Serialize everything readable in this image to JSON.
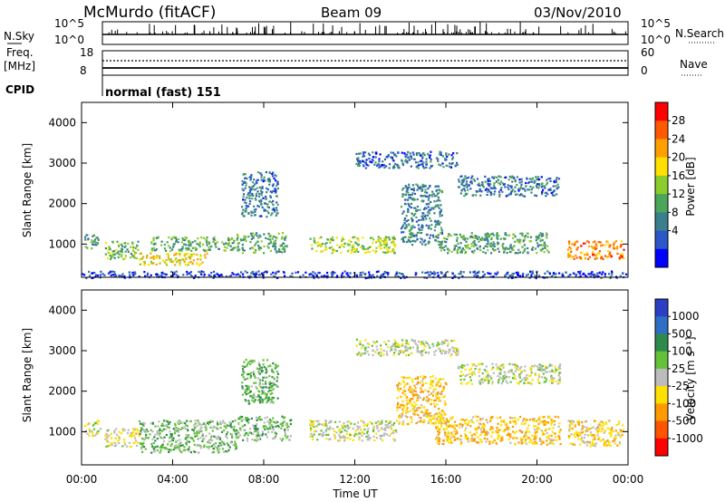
{
  "header": {
    "station": "McMurdo (fitACF)",
    "beam": "Beam 09",
    "date": "03/Nov/2010"
  },
  "noise_panel": {
    "left_label": "N.Sky",
    "left_ticks": [
      "10^5",
      "10^0"
    ],
    "right_label": "N.Search",
    "right_ticks": [
      "10^5",
      "10^0"
    ]
  },
  "freq_panel": {
    "left_label_1": "Freq.",
    "left_label_2": "[MHz]",
    "left_ticks": [
      "18",
      "8"
    ],
    "right_label": "Nave",
    "right_ticks": [
      "60",
      "0"
    ]
  },
  "cpid": {
    "label": "CPID",
    "value": "normal (fast) 151"
  },
  "power_panel": {
    "ylabel": "Slant Range [km]",
    "y_ticks": [
      "4000",
      "3000",
      "2000",
      "1000"
    ],
    "colorbar_label": "Power [dB]",
    "colorbar_ticks": [
      "28",
      "24",
      "20",
      "16",
      "12",
      "8",
      "4"
    ]
  },
  "velocity_panel": {
    "ylabel": "Slant Range [km]",
    "y_ticks": [
      "4000",
      "3000",
      "2000",
      "1000"
    ],
    "colorbar_label": "Velocity [m s⁻¹]",
    "colorbar_ticks": [
      "1000",
      "500",
      "100",
      "25",
      "-25",
      "-100",
      "-500",
      "-1000"
    ]
  },
  "x_axis": {
    "label": "Time UT",
    "ticks": [
      "00:00",
      "04:00",
      "08:00",
      "12:00",
      "16:00",
      "20:00",
      "00:00"
    ]
  },
  "colors": {
    "power_scale": [
      "#0000ff",
      "#2b57c8",
      "#3a7f8c",
      "#4ca65a",
      "#8ccc2c",
      "#ffe000",
      "#ffa000",
      "#ff5a00",
      "#ff0000"
    ],
    "velocity_scale": [
      "#2b3fc4",
      "#2e6fc4",
      "#2f8a4d",
      "#63c23a",
      "#bcbcbc",
      "#ffe000",
      "#ff9a00",
      "#ff5500",
      "#ff0000"
    ]
  },
  "chart_data": [
    {
      "type": "heatmap",
      "title": "Power",
      "xlabel": "Time UT",
      "ylabel": "Slant Range [km]",
      "xlim": [
        0,
        24
      ],
      "ylim": [
        180,
        4500
      ],
      "colorbar": {
        "label": "Power [dB]",
        "range": [
          0,
          32
        ],
        "ticks": [
          4,
          8,
          12,
          16,
          20,
          24,
          28
        ]
      },
      "regions": [
        {
          "t": [
            0.1,
            0.8
          ],
          "range": [
            900,
            1250
          ],
          "value": 11
        },
        {
          "t": [
            1.0,
            2.5
          ],
          "range": [
            650,
            1100
          ],
          "value": 14
        },
        {
          "t": [
            2.5,
            5.5
          ],
          "range": [
            500,
            800
          ],
          "value": 20
        },
        {
          "t": [
            3.0,
            6.8
          ],
          "range": [
            850,
            1200
          ],
          "value": 13
        },
        {
          "t": [
            6.8,
            9.0
          ],
          "range": [
            800,
            1300
          ],
          "value": 12
        },
        {
          "t": [
            7.0,
            8.6
          ],
          "range": [
            1700,
            2800
          ],
          "value": 8
        },
        {
          "t": [
            10.0,
            13.8
          ],
          "range": [
            800,
            1200
          ],
          "value": 16
        },
        {
          "t": [
            14.0,
            15.8
          ],
          "range": [
            1000,
            2500
          ],
          "value": 9
        },
        {
          "t": [
            12.0,
            16.5
          ],
          "range": [
            2900,
            3300
          ],
          "value": 7
        },
        {
          "t": [
            16.5,
            21.0
          ],
          "range": [
            2200,
            2700
          ],
          "value": 8
        },
        {
          "t": [
            15.5,
            20.5
          ],
          "range": [
            800,
            1300
          ],
          "value": 12
        },
        {
          "t": [
            21.3,
            23.8
          ],
          "range": [
            650,
            1100
          ],
          "value": 24
        },
        {
          "t": [
            0.0,
            24.0
          ],
          "range": [
            180,
            350
          ],
          "value": 5
        }
      ]
    },
    {
      "type": "heatmap",
      "title": "Velocity",
      "xlabel": "Time UT",
      "ylabel": "Slant Range [km]",
      "xlim": [
        0,
        24
      ],
      "ylim": [
        180,
        4500
      ],
      "colorbar": {
        "label": "Velocity [m s⁻¹]",
        "range": [
          -1000,
          1000
        ],
        "ticks": [
          1000,
          500,
          100,
          25,
          -25,
          -100,
          -500,
          -1000
        ]
      },
      "regions": [
        {
          "t": [
            0.1,
            0.8
          ],
          "range": [
            900,
            1300
          ],
          "value": -100
        },
        {
          "t": [
            1.0,
            2.5
          ],
          "range": [
            650,
            1100
          ],
          "value": -100
        },
        {
          "t": [
            2.5,
            6.8
          ],
          "range": [
            500,
            1300
          ],
          "value": 200
        },
        {
          "t": [
            6.8,
            9.2
          ],
          "range": [
            800,
            1400
          ],
          "value": 200
        },
        {
          "t": [
            7.0,
            8.6
          ],
          "range": [
            1700,
            2800
          ],
          "value": 300
        },
        {
          "t": [
            10.0,
            13.8
          ],
          "range": [
            800,
            1300
          ],
          "value": 0
        },
        {
          "t": [
            13.8,
            16.0
          ],
          "range": [
            1200,
            2400
          ],
          "value": -300
        },
        {
          "t": [
            12.0,
            16.5
          ],
          "range": [
            2900,
            3300
          ],
          "value": 0
        },
        {
          "t": [
            16.5,
            21.0
          ],
          "range": [
            2200,
            2700
          ],
          "value": 0
        },
        {
          "t": [
            15.5,
            21.0
          ],
          "range": [
            700,
            1400
          ],
          "value": -300
        },
        {
          "t": [
            21.3,
            23.8
          ],
          "range": [
            650,
            1300
          ],
          "value": -200
        }
      ]
    }
  ]
}
